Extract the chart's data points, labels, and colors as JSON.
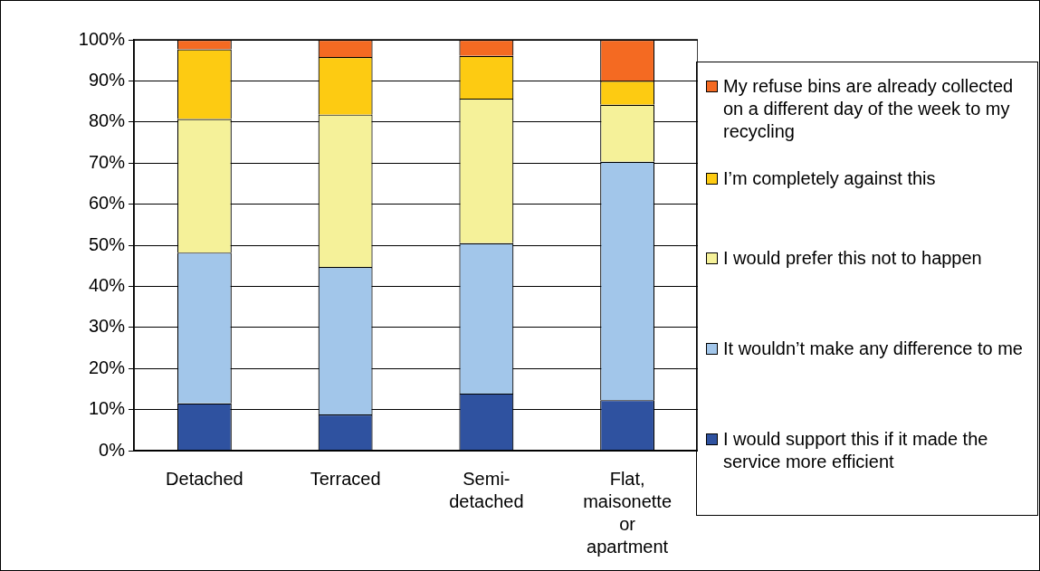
{
  "chart_data": {
    "type": "bar",
    "stacked": true,
    "categories": [
      "Detached",
      "Terraced",
      "Semi-detached",
      "Flat, maisonette or apartment"
    ],
    "series": [
      {
        "name": "I would support this if it made the service more efficient",
        "color": "#2f52a0",
        "values": [
          11.5,
          8.8,
          13.9,
          12.3
        ]
      },
      {
        "name": "It wouldn’t make any difference to me",
        "color": "#a2c6ea",
        "values": [
          36.7,
          35.9,
          36.6,
          58.0
        ]
      },
      {
        "name": "I would prefer this not to happen",
        "color": "#f5f199",
        "values": [
          32.5,
          37.1,
          35.2,
          13.9
        ]
      },
      {
        "name": "I’m completely against this",
        "color": "#fdcb12",
        "values": [
          17.0,
          14.0,
          10.4,
          5.8
        ]
      },
      {
        "name": "My refuse bins are already collected on a different day of the week to my recycling",
        "color": "#f46a22",
        "values": [
          2.3,
          4.2,
          3.9,
          10.0
        ]
      }
    ],
    "ylim": [
      0,
      100
    ],
    "yticks": [
      {
        "value": 0,
        "label": "0%"
      },
      {
        "value": 10,
        "label": "10%"
      },
      {
        "value": 20,
        "label": "20%"
      },
      {
        "value": 30,
        "label": "30%"
      },
      {
        "value": 40,
        "label": "40%"
      },
      {
        "value": 50,
        "label": "50%"
      },
      {
        "value": 60,
        "label": "60%"
      },
      {
        "value": 70,
        "label": "70%"
      },
      {
        "value": 80,
        "label": "80%"
      },
      {
        "value": 90,
        "label": "90%"
      },
      {
        "value": 100,
        "label": "100%"
      }
    ],
    "grid": "y",
    "legend": "right"
  }
}
